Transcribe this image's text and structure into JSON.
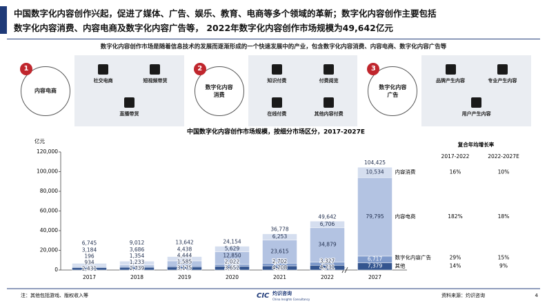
{
  "header": {
    "title_lines": [
      "中国数字化内容创作兴起，促进了媒体、广告、娱乐、教育、电商等多个领域的革新；数字化内容创作主要包括",
      "数字化内容消费、内容电商及数字化内容广告等， 2022年数字化内容创作市场规模为49,642亿元"
    ]
  },
  "subtitle": "数字化内容创作市场是随着信息技术的发展而逐渐形成的一个快速发展中的产业，包含数字化内容消费、内容电商、数字化内容广告等",
  "panels": [
    {
      "number": "1",
      "label": "内容电商",
      "items": [
        "社交电商",
        "短视频带货",
        "直播带货"
      ]
    },
    {
      "number": "2",
      "label": "数字化内容消费",
      "items": [
        "知识付费",
        "付费阅览",
        "在线付费",
        "其他内容付费"
      ]
    },
    {
      "number": "3",
      "label": "数字化内容广告",
      "items": [
        "品牌产生内容",
        "专业产生内容",
        "用户产生内容"
      ]
    }
  ],
  "chart_data": {
    "type": "stacked-bar",
    "title": "中国数字化内容创作市场规模，按细分市场区分，2017-2027E",
    "y_label": "亿元",
    "categories": [
      "2017",
      "2018",
      "2019",
      "2020",
      "2021",
      "2022",
      "2027"
    ],
    "series": [
      {
        "name": "其他",
        "color": "#34558f",
        "label_color": "#ffffff",
        "values": [
          2431,
          2739,
          3175,
          3652,
          4208,
          4731,
          7379
        ],
        "value_labels": [
          "2,431",
          "2,739",
          "3,175",
          "3,652",
          "4,208",
          "4,731",
          "7,379"
        ]
      },
      {
        "name": "数字化内容广告",
        "color": "#7f9acb",
        "label_color": "#ffffff",
        "values": [
          934,
          1233,
          1585,
          2022,
          2702,
          3327,
          6717
        ],
        "value_labels": [
          "934",
          "1,233",
          "1,585",
          "2,022",
          "2,702",
          "3,327",
          "6,717"
        ]
      },
      {
        "name": "内容电商",
        "color": "#b3c3e2",
        "label_color": "#1f2d4d",
        "values": [
          196,
          1354,
          4444,
          12850,
          23615,
          34879,
          79795
        ],
        "value_labels": [
          "196",
          "1,354",
          "4,444",
          "12,850",
          "23,615",
          "34,879",
          "79,795"
        ]
      },
      {
        "name": "内容消费",
        "color": "#d5deef",
        "label_color": "#1f2d4d",
        "values": [
          3184,
          3686,
          4438,
          5629,
          6253,
          6706,
          10534
        ],
        "value_labels": [
          "3,184",
          "3,686",
          "4,438",
          "5,629",
          "6,253",
          "6,706",
          "10,534"
        ]
      }
    ],
    "totals": {
      "values": [
        6745,
        9012,
        13642,
        24154,
        36778,
        49642,
        104425
      ],
      "value_labels": [
        "6,745",
        "9,012",
        "13,642",
        "24,154",
        "36,778",
        "49,642",
        "104,425"
      ]
    },
    "ylim": [
      0,
      120000
    ],
    "yticks": [
      0,
      {
        "value": 20000,
        "label": "20,000"
      },
      {
        "value": 40000,
        "label": "40,000"
      },
      {
        "value": 60000,
        "label": "60,000"
      },
      {
        "value": 80000,
        "label": "80,000"
      },
      {
        "value": 100000,
        "label": "100,000"
      },
      {
        "value": 120000,
        "label": "120,000"
      }
    ]
  },
  "cagr_table": {
    "title": "复合年均增长率",
    "columns": [
      "2017-2022",
      "2022-2027E"
    ],
    "rows": [
      [
        "14%",
        "9%"
      ],
      [
        "29%",
        "15%"
      ],
      [
        "182%",
        "18%"
      ],
      [
        "16%",
        "10%"
      ]
    ]
  },
  "footer": {
    "note": "注：其他包括游戏、版权收入等",
    "logo_mark": "CIC",
    "logo": "灼识咨询",
    "logo_sub": "China Insights Consultancy",
    "source": "资料来源：灼识咨询",
    "page": "4"
  }
}
